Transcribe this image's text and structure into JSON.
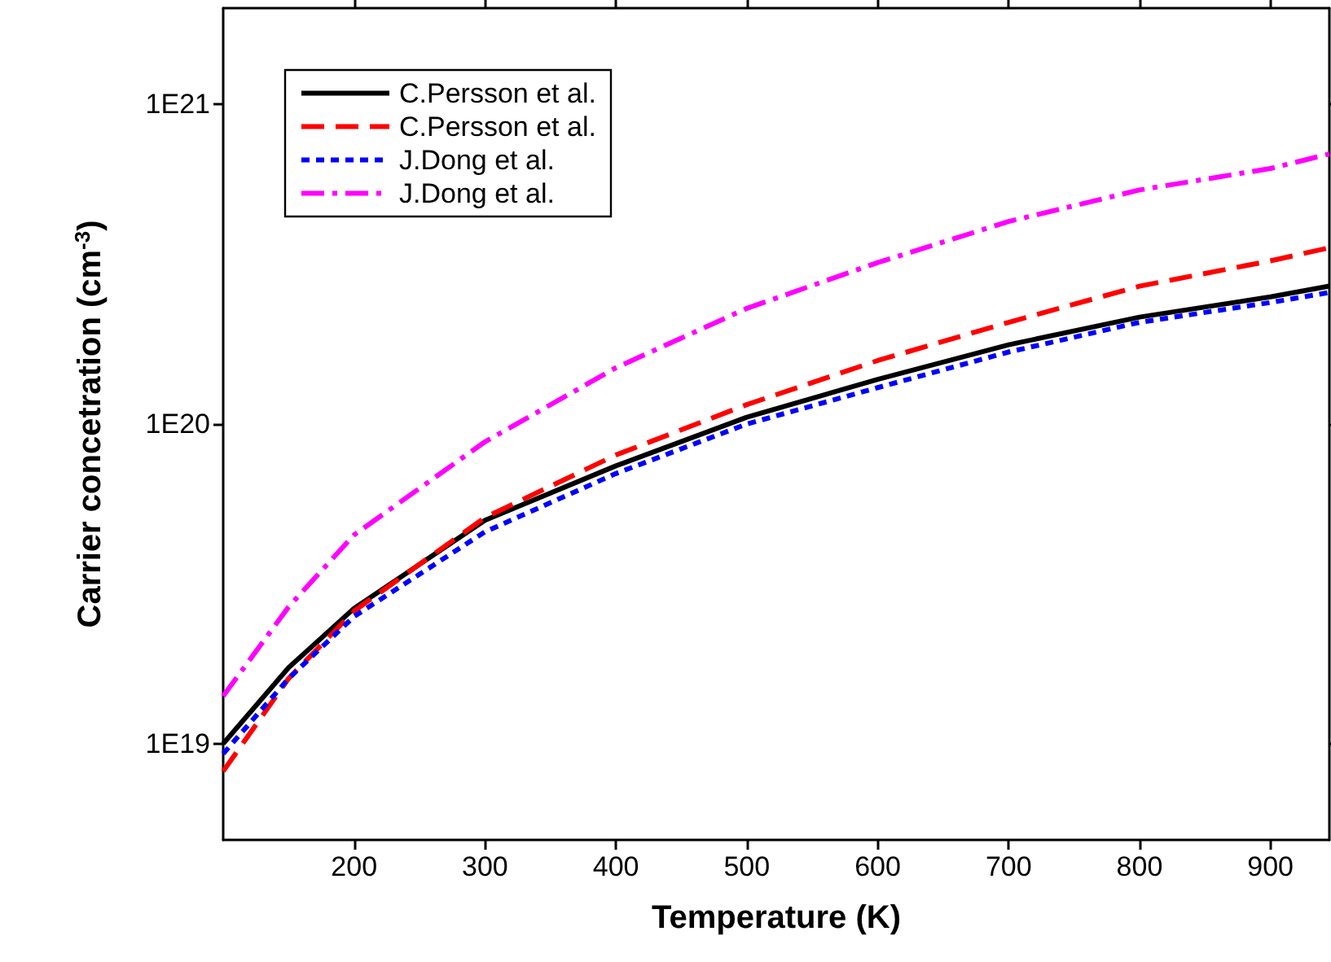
{
  "chart_data": {
    "type": "line",
    "xlabel": "Temperature (K)",
    "ylabel": "Carrier concetration (cm$^{-3}$)",
    "log": "y",
    "xlim": [
      100,
      945
    ],
    "xticks": [
      200,
      300,
      400,
      500,
      600,
      700,
      800,
      900
    ],
    "ylim": [
      5e+18,
      2e+21
    ],
    "yticks": [
      {
        "value": 1e+19,
        "label": "1E19"
      },
      {
        "value": 1e+20,
        "label": "1E20"
      },
      {
        "value": 1e+21,
        "label": "1E21"
      }
    ],
    "grid": false,
    "legend": "top left",
    "marker": "none",
    "x": [
      100,
      150,
      200,
      300,
      400,
      500,
      600,
      700,
      800,
      900,
      945
    ],
    "series": [
      {
        "name": "C.Persson et al.",
        "color": "#000000",
        "line_style": "solid",
        "values": [
          1e+19,
          1.73e+19,
          2.65e+19,
          5e+19,
          7.4e+19,
          1.05e+20,
          1.38e+20,
          1.77e+20,
          2.16e+20,
          2.5e+20,
          2.7e+20
        ]
      },
      {
        "name": "C.Persson et al.",
        "color": "#ff0000",
        "line_style": "dashed",
        "values": [
          8.2e+18,
          1.6e+19,
          2.6e+19,
          5.1e+19,
          8e+19,
          1.15e+20,
          1.58e+20,
          2.08e+20,
          2.7e+20,
          3.24e+20,
          3.56e+20
        ]
      },
      {
        "name": "J.Dong et al.",
        "color": "#0000ff",
        "line_style": "dotted",
        "values": [
          9.3e+18,
          1.6e+19,
          2.5e+19,
          4.6e+19,
          7e+19,
          1e+20,
          1.3e+20,
          1.68e+20,
          2.08e+20,
          2.4e+20,
          2.58e+20
        ]
      },
      {
        "name": "J.Dong et al.",
        "color": "#ff00ff",
        "line_style": "dashdot",
        "values": [
          1.41e+19,
          2.68e+19,
          4.5e+19,
          8.8e+19,
          1.5e+20,
          2.3e+20,
          3.2e+20,
          4.3e+20,
          5.4e+20,
          6.3e+20,
          7e+20
        ]
      }
    ]
  }
}
